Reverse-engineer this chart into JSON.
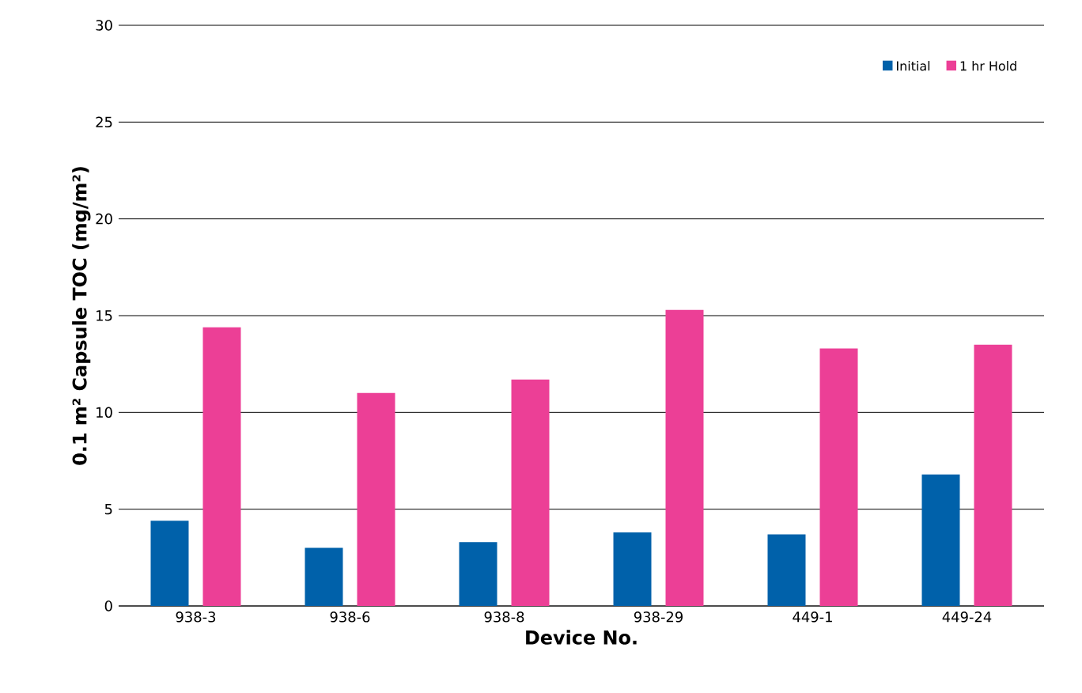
{
  "chart_data": {
    "type": "bar",
    "xlabel": "Device No.",
    "ylabel": "0.1 m² Capsule TOC (mg/m²)",
    "categories": [
      "938-3",
      "938-6",
      "938-8",
      "938-29",
      "449-1",
      "449-24"
    ],
    "series": [
      {
        "name": "Initial",
        "color": "#0061aa",
        "values": [
          4.4,
          3.0,
          3.3,
          3.8,
          3.7,
          6.8
        ]
      },
      {
        "name": "1 hr Hold",
        "color": "#ec3f96",
        "values": [
          14.4,
          11.0,
          11.7,
          15.3,
          13.3,
          13.5
        ]
      }
    ],
    "ylim": [
      0,
      30
    ],
    "yticks": [
      0,
      5,
      10,
      15,
      20,
      25,
      30
    ],
    "grid": "y",
    "legend": "top right"
  }
}
